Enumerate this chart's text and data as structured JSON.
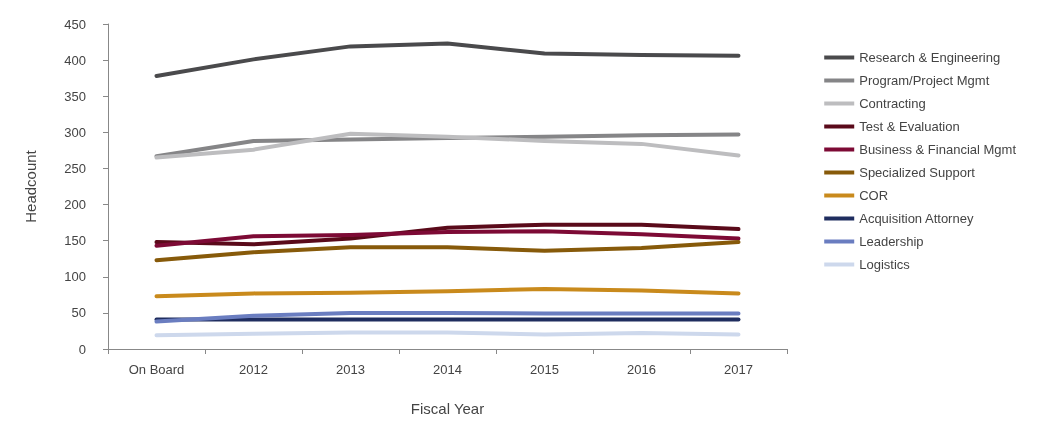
{
  "chart_data": {
    "type": "line",
    "xlabel": "Fiscal Year",
    "ylabel": "Headcount",
    "categories": [
      "On Board",
      "2012",
      "2013",
      "2014",
      "2015",
      "2016",
      "2017"
    ],
    "ylim": [
      0,
      450
    ],
    "yticks": [
      0,
      50,
      100,
      150,
      200,
      250,
      300,
      350,
      400,
      450
    ],
    "grid": false,
    "legend": "right",
    "marker": "none",
    "line_style": "solid",
    "series": [
      {
        "name": "Research & Engineering",
        "color": "#4a4a4c",
        "values": [
          378,
          401,
          419,
          423,
          409,
          407,
          406
        ]
      },
      {
        "name": "Program/Project Mgmt",
        "color": "#858587",
        "values": [
          267,
          288,
          290,
          292,
          294,
          296,
          297
        ]
      },
      {
        "name": "Contracting",
        "color": "#bdbdbf",
        "values": [
          265,
          276,
          298,
          294,
          288,
          284,
          268
        ]
      },
      {
        "name": "Test & Evaluation",
        "color": "#5a0a1a",
        "values": [
          148,
          145,
          153,
          168,
          172,
          172,
          166
        ]
      },
      {
        "name": "Business & Financial Mgmt",
        "color": "#7d0a35",
        "values": [
          143,
          156,
          158,
          162,
          163,
          159,
          153
        ]
      },
      {
        "name": "Specialized Support",
        "color": "#875a0a",
        "values": [
          123,
          134,
          141,
          141,
          136,
          140,
          148
        ]
      },
      {
        "name": "COR",
        "color": "#c98a1c",
        "values": [
          73,
          77,
          78,
          80,
          83,
          81,
          77
        ]
      },
      {
        "name": "Acquisition Attorney",
        "color": "#1f2d5f",
        "values": [
          41,
          41,
          41,
          41,
          41,
          41,
          41
        ]
      },
      {
        "name": "Leadership",
        "color": "#6a7dc0",
        "values": [
          38,
          46,
          50,
          50,
          49,
          49,
          49
        ]
      },
      {
        "name": "Logistics",
        "color": "#cdd8ec",
        "values": [
          19,
          21,
          23,
          23,
          20,
          22,
          20
        ]
      }
    ]
  }
}
